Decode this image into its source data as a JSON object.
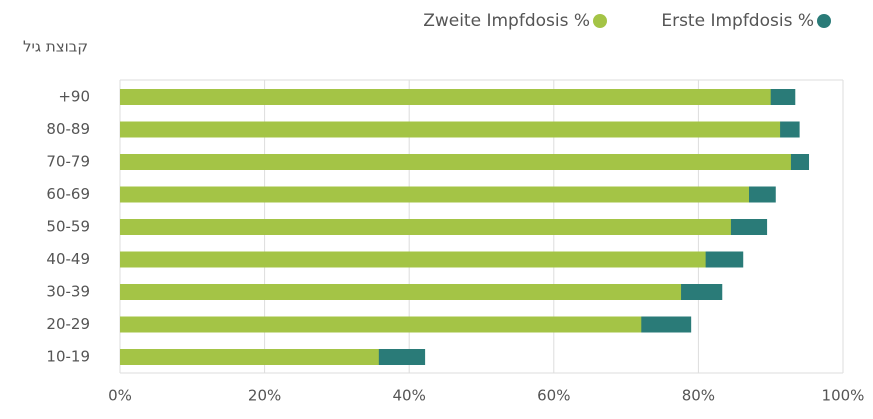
{
  "chart_data": {
    "type": "bar",
    "orientation": "horizontal",
    "overlap": true,
    "y_axis_title": "קבוצת גיל",
    "categories": [
      "+90",
      "80-89",
      "70-79",
      "60-69",
      "50-59",
      "40-49",
      "30-39",
      "20-29",
      "10-19"
    ],
    "series": [
      {
        "name": "Erste Impfdosis %",
        "color": "#2a7b78",
        "values": [
          93.4,
          94.0,
          95.3,
          90.7,
          89.5,
          86.2,
          83.3,
          79.0,
          42.2
        ]
      },
      {
        "name": "Zweite Impfdosis %",
        "color": "#a4c446",
        "values": [
          90.0,
          91.3,
          92.8,
          87.0,
          84.5,
          81.0,
          77.6,
          72.1,
          35.8
        ]
      }
    ],
    "xlim": [
      0,
      100
    ],
    "xticks": [
      {
        "value": 0,
        "label": "0%"
      },
      {
        "value": 20,
        "label": "20%"
      },
      {
        "value": 40,
        "label": "40%"
      },
      {
        "value": 60,
        "label": "60%"
      },
      {
        "value": 80,
        "label": "80%"
      },
      {
        "value": 100,
        "label": "100%"
      }
    ],
    "grid": true
  }
}
